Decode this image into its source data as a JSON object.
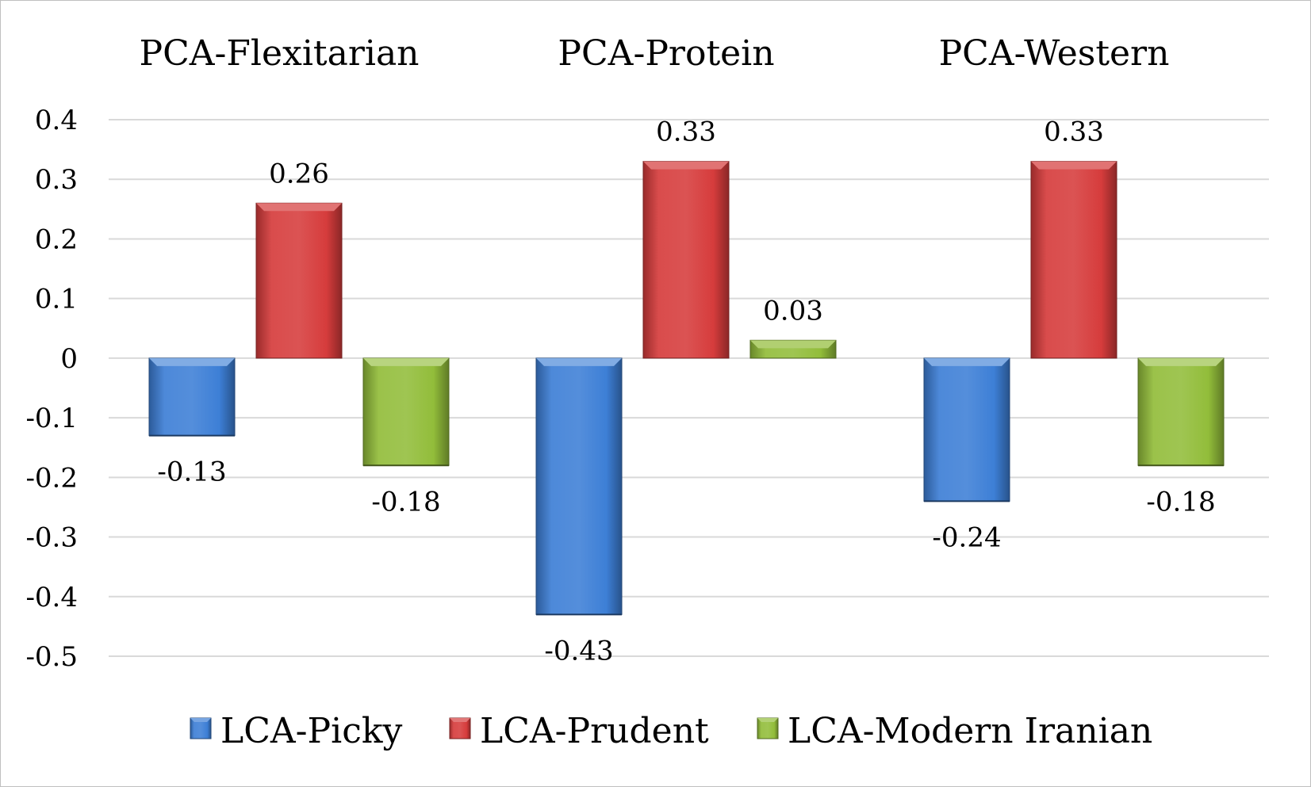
{
  "chart_data": {
    "type": "bar",
    "categories": [
      "PCA-Flexitarian",
      "PCA-Protein",
      "PCA-Western"
    ],
    "series": [
      {
        "name": "LCA-Picky",
        "values": [
          -0.13,
          -0.43,
          -0.24
        ],
        "labels": [
          "-0.13",
          "-0.43",
          "-0.24"
        ],
        "color": "#3d7fd6"
      },
      {
        "name": "LCA-Prudent",
        "values": [
          0.26,
          0.33,
          0.33
        ],
        "labels": [
          "0.26",
          "0.33",
          "0.33"
        ],
        "color": "#d63c3c"
      },
      {
        "name": "LCA-Modern Iranian",
        "values": [
          -0.18,
          0.03,
          -0.18
        ],
        "labels": [
          "-0.18",
          "0.03",
          "-0.18"
        ],
        "color": "#92bd3a"
      }
    ],
    "ylim": [
      -0.5,
      0.4
    ],
    "yticks": [
      {
        "value": 0.4,
        "label": "0.4"
      },
      {
        "value": 0.3,
        "label": "0.3"
      },
      {
        "value": 0.2,
        "label": "0.2"
      },
      {
        "value": 0.1,
        "label": "0.1"
      },
      {
        "value": 0,
        "label": "0"
      },
      {
        "value": -0.1,
        "label": "-0.1"
      },
      {
        "value": -0.2,
        "label": "-0.2"
      },
      {
        "value": -0.3,
        "label": "-0.3"
      },
      {
        "value": -0.4,
        "label": "-0.4"
      },
      {
        "value": -0.5,
        "label": "-0.5"
      }
    ],
    "category_label_position": "top",
    "grid": true,
    "legend": "bottom"
  }
}
